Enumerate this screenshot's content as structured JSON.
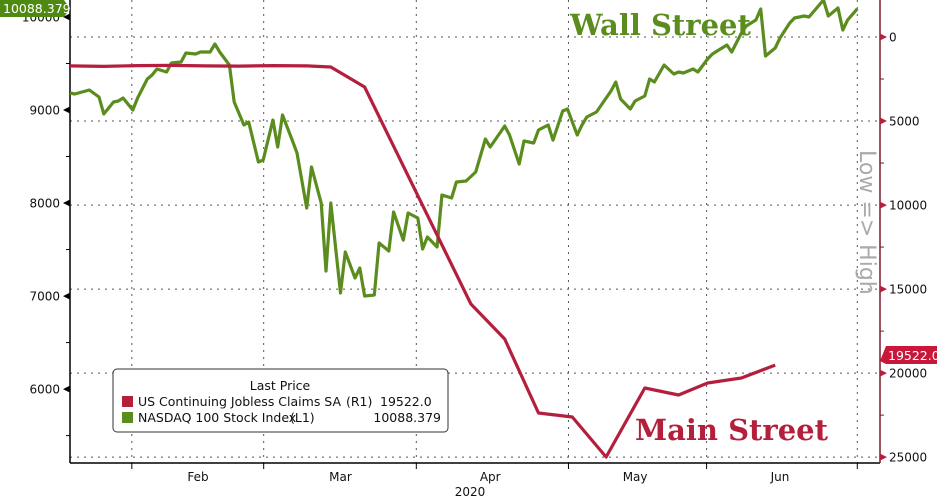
{
  "chart_data": {
    "type": "line",
    "title": "",
    "xlabel": "2020",
    "x_unit": "day of year 2020",
    "xlim": [
      17,
      185
    ],
    "x_ticks": [
      {
        "label": "Feb",
        "day": 43.5
      },
      {
        "label": "Mar",
        "day": 73
      },
      {
        "label": "Apr",
        "day": 104
      },
      {
        "label": "May",
        "day": 134
      },
      {
        "label": "Jun",
        "day": 164
      }
    ],
    "x_grid_days": [
      29.8,
      57.1,
      88.7,
      120.2,
      148.8,
      180
    ],
    "year_label": "2020",
    "left_axis": {
      "ylim": [
        5200,
        10200
      ],
      "ticks": [
        6000,
        7000,
        8000,
        9000,
        10000
      ],
      "inverted": false
    },
    "right_axis": {
      "ylim": [
        -1000,
        25300
      ],
      "ticks": [
        0,
        5000,
        10000,
        15000,
        20000,
        25000
      ],
      "inverted": true,
      "label": "Low => High"
    },
    "grid": true,
    "legend": {
      "placement": "bottom-left",
      "title": "Last Price",
      "entries": [
        {
          "name": "US Continuing Jobless Claims SA",
          "axis": "(R1)",
          "last": "19522.0",
          "color": "#b41f3d"
        },
        {
          "name": "NASDAQ 100 Stock Index",
          "axis": "(L1)",
          "last": "10088.379",
          "color": "#5b8c1e"
        }
      ]
    },
    "series": [
      {
        "name": "NASDAQ 100 Stock Index",
        "axis": "left",
        "color": "#5b8c1e",
        "last_value_tag": "10088.379",
        "x": [
          17,
          18,
          21,
          23,
          24,
          26,
          27,
          28,
          30,
          31,
          33,
          34,
          35,
          37,
          38,
          40,
          41,
          43,
          44,
          46,
          47,
          48,
          50,
          51,
          53,
          54,
          56,
          57,
          59,
          60,
          61,
          63,
          64,
          66,
          67,
          69,
          70,
          71,
          73,
          74,
          76,
          77,
          78,
          80,
          81,
          83,
          84,
          86,
          87,
          89,
          90,
          91,
          93,
          94,
          96,
          97,
          99,
          101,
          103,
          104,
          106,
          107,
          108,
          110,
          111,
          113,
          114,
          116,
          117,
          119,
          120,
          122,
          123,
          124,
          126,
          129,
          130,
          131,
          133,
          134,
          136,
          137,
          138,
          140,
          142,
          143,
          144,
          146,
          147,
          149,
          150,
          152,
          153,
          154,
          156,
          157,
          159,
          160,
          161,
          163,
          164,
          166,
          167,
          169,
          170,
          173,
          174,
          176,
          177,
          178,
          180
        ],
        "values": [
          9183,
          9172,
          9215,
          9140,
          8957,
          9086,
          9097,
          9129,
          9000,
          9129,
          9333,
          9376,
          9441,
          9409,
          9505,
          9516,
          9613,
          9602,
          9624,
          9624,
          9710,
          9624,
          9484,
          9086,
          8839,
          8871,
          8441,
          8463,
          8893,
          8602,
          8946,
          8677,
          8538,
          7947,
          8387,
          8000,
          7269,
          8000,
          7033,
          7474,
          7194,
          7302,
          7001,
          7012,
          7570,
          7484,
          7904,
          7602,
          7893,
          7839,
          7506,
          7635,
          7527,
          8086,
          8054,
          8226,
          8237,
          8334,
          8689,
          8602,
          8753,
          8828,
          8731,
          8420,
          8667,
          8645,
          8785,
          8839,
          8677,
          8990,
          9011,
          8731,
          8839,
          8925,
          8979,
          9205,
          9301,
          9118,
          9011,
          9097,
          9151,
          9333,
          9301,
          9484,
          9387,
          9409,
          9398,
          9441,
          9409,
          9549,
          9602,
          9667,
          9699,
          9624,
          9828,
          9903,
          9968,
          10086,
          9581,
          9667,
          9774,
          9936,
          9989,
          10011,
          10000,
          10183,
          10011,
          10097,
          9860,
          9968,
          10088.379
        ]
      },
      {
        "name": "US Continuing Jobless Claims SA",
        "axis": "right",
        "color": "#b41f3d",
        "last_value_tag": "19522.0",
        "x": [
          17,
          24,
          31,
          38,
          45,
          52,
          59,
          66,
          71,
          78,
          100,
          107,
          114,
          121,
          128,
          136,
          143,
          149,
          156,
          163
        ],
        "values": [
          1720,
          1750,
          1700,
          1690,
          1720,
          1730,
          1700,
          1720,
          1785,
          2975,
          15887,
          17969,
          22372,
          22610,
          24990,
          20885,
          21301,
          20587,
          20290,
          19522
        ]
      }
    ],
    "annotations": [
      {
        "text": "Wall Street",
        "color": "#5b8c1e"
      },
      {
        "text": "Main Street",
        "color": "#b41f3d"
      }
    ]
  }
}
